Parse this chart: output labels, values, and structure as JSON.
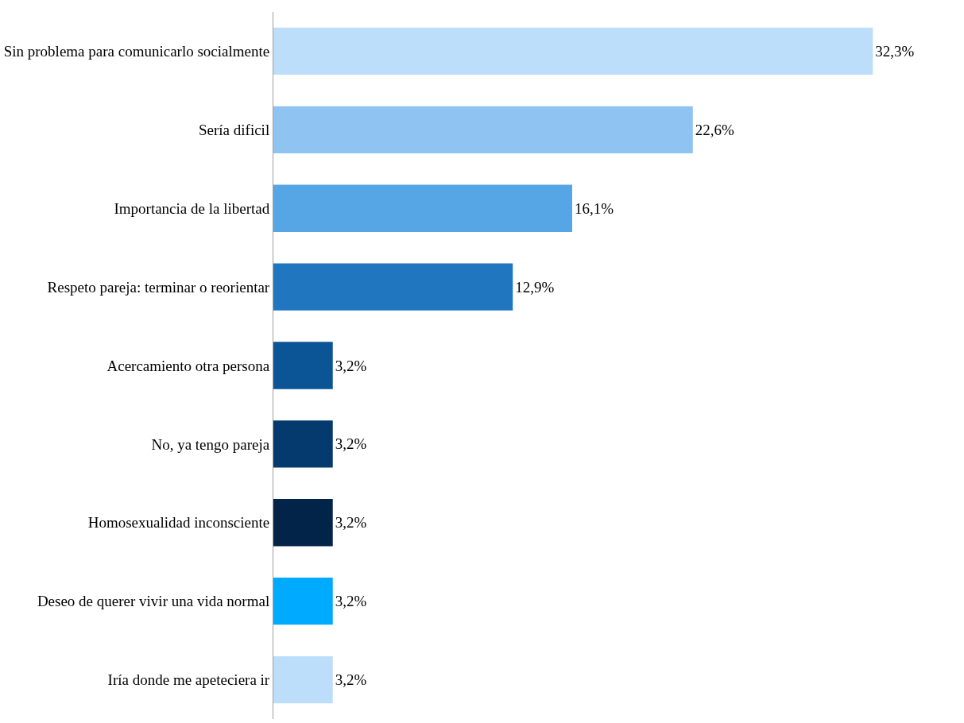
{
  "chart_data": {
    "type": "bar",
    "orientation": "horizontal",
    "categories": [
      "Sin problema para comunicarlo socialmente",
      "Sería dificil",
      "Importancia de la libertad",
      "Respeto pareja: terminar o reorientar",
      "Acercamiento otra persona",
      "No, ya tengo pareja",
      "Homosexualidad inconsciente",
      "Deseo de querer vivir una vida normal",
      "Iría donde me apeteciera ir"
    ],
    "values": [
      32.3,
      22.6,
      16.1,
      12.9,
      3.2,
      3.2,
      3.2,
      3.2,
      3.2
    ],
    "value_labels": [
      "32,3%",
      "22,6%",
      "16,1%",
      "12,9%",
      "3,2%",
      "3,2%",
      "3,2%",
      "3,2%",
      "3,2%"
    ],
    "colors": [
      "#bddefb",
      "#8fc3f2",
      "#56a5e4",
      "#2176c0",
      "#0b5496",
      "#043a6e",
      "#022449",
      "#00aaff",
      "#bddefb"
    ],
    "legend": false,
    "tick_labels": "y"
  }
}
